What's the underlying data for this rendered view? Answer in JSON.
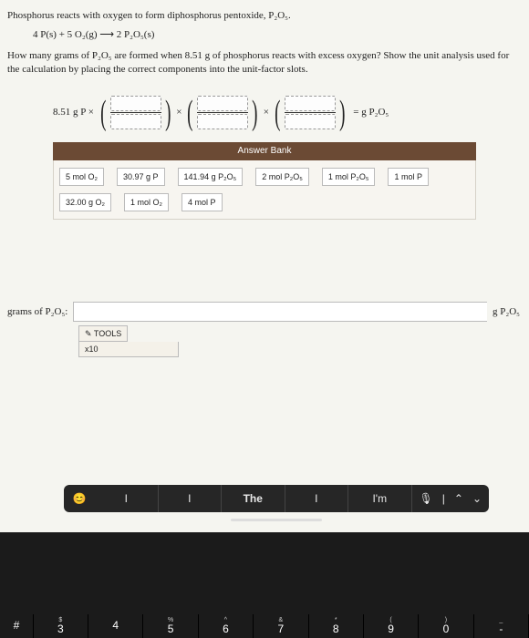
{
  "intro": "Phosphorus reacts with oxygen to form diphosphorus pentoxide, P₂O₅.",
  "equation": "4 P(s) + 5 O₂(g) ⟶ 2 P₂O₅(s)",
  "question": "How many grams of P₂O₅ are formed when 8.51 g of phosphorus reacts with excess oxygen? Show the unit analysis used for the calculation by placing the correct components into the unit-factor slots.",
  "prefix": "8.51 g P ×",
  "times": "×",
  "suffix": "= g P₂O₅",
  "answer_bank": {
    "header": "Answer Bank",
    "tiles": [
      "5 mol O₂",
      "30.97 g P",
      "141.94 g P₂O₅",
      "2 mol P₂O₅",
      "1 mol P₂O₅",
      "1 mol P",
      "32.00 g O₂",
      "1 mol O₂",
      "4 mol P"
    ]
  },
  "answer": {
    "label": "grams of P₂O₅:",
    "value": "",
    "unit": "g P₂O₅"
  },
  "tools": {
    "label": "✎ TOOLS",
    "x10": "x10"
  },
  "kb": {
    "suggestions": [
      "I",
      "I",
      "The",
      "I",
      "I'm"
    ],
    "mic": "🎙",
    "sep": "|",
    "up": "⌃",
    "down": "⌄",
    "emoji": "😊"
  },
  "keys": [
    {
      "sym": "",
      "num": "#",
      "cls": "hash-key"
    },
    {
      "sym": "$",
      "num": "3"
    },
    {
      "sym": "",
      "num": "4"
    },
    {
      "sym": "%",
      "num": "5"
    },
    {
      "sym": "^",
      "num": "6"
    },
    {
      "sym": "&",
      "num": "7"
    },
    {
      "sym": "*",
      "num": "8"
    },
    {
      "sym": "(",
      "num": "9"
    },
    {
      "sym": ")",
      "num": "0"
    },
    {
      "sym": "_",
      "num": "-"
    }
  ]
}
